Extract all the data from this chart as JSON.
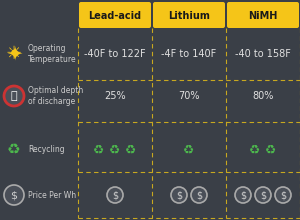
{
  "bg_color": "#3a3f47",
  "header_bg": "#f5c518",
  "header_text_color": "#1a1a1a",
  "cell_text_color": "#e0e0e0",
  "label_text_color": "#cccccc",
  "dashed_line_color": "#c8a820",
  "col_headers": [
    "Lead-acid",
    "Lithium",
    "NiMH"
  ],
  "row_labels": [
    "Operating\nTemperature",
    "Optimal depth\nof discharge",
    "Recycling",
    "Price Per Wh"
  ],
  "cell_values": [
    [
      "-40F to 122F",
      "-4F to 140F",
      "-40 to 158F"
    ],
    [
      "25%",
      "70%",
      "80%"
    ],
    [
      3,
      1,
      2
    ],
    [
      1,
      2,
      3
    ]
  ],
  "recycle_color": "#4db84d",
  "dollar_color": "#cccccc",
  "dollar_border_color": "#aaaaaa",
  "sun_color": "#f5c518",
  "clock_border_color": "#cc3333",
  "figsize": [
    3.0,
    2.2
  ],
  "dpi": 100
}
